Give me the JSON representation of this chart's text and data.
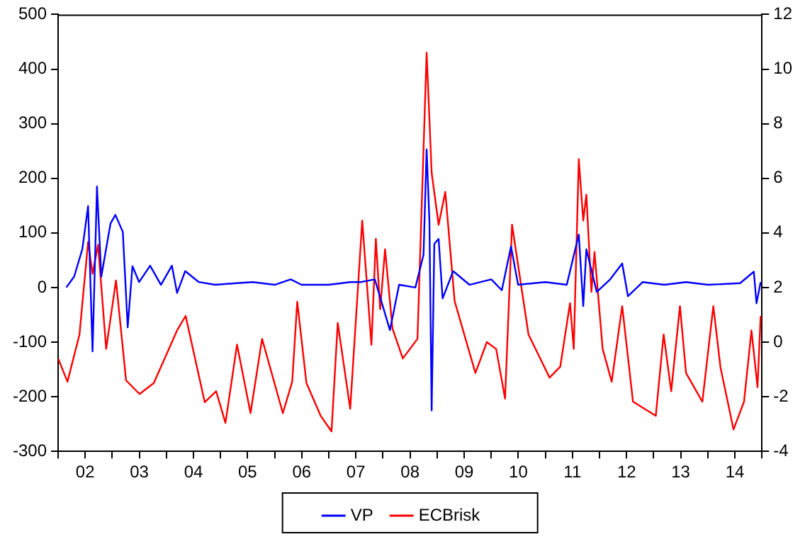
{
  "chart_data": {
    "type": "line",
    "xlim": [
      "2002-01-01",
      "2015-01-01"
    ],
    "xticks": [
      {
        "value": "2002-01-01",
        "label": null
      },
      {
        "value": "2002-07-02",
        "label": "02"
      },
      {
        "value": "2003-01-01",
        "label": null
      },
      {
        "value": "2003-07-02",
        "label": "03"
      },
      {
        "value": "2004-01-01",
        "label": null
      },
      {
        "value": "2004-07-02",
        "label": "04"
      },
      {
        "value": "2005-01-01",
        "label": null
      },
      {
        "value": "2005-07-02",
        "label": "05"
      },
      {
        "value": "2006-01-01",
        "label": null
      },
      {
        "value": "2006-07-02",
        "label": "06"
      },
      {
        "value": "2007-01-01",
        "label": null
      },
      {
        "value": "2007-07-02",
        "label": "07"
      },
      {
        "value": "2008-01-01",
        "label": null
      },
      {
        "value": "2008-07-02",
        "label": "08"
      },
      {
        "value": "2009-01-01",
        "label": null
      },
      {
        "value": "2009-07-02",
        "label": "09"
      },
      {
        "value": "2010-01-01",
        "label": null
      },
      {
        "value": "2010-07-02",
        "label": "10"
      },
      {
        "value": "2011-01-01",
        "label": null
      },
      {
        "value": "2011-07-02",
        "label": "11"
      },
      {
        "value": "2012-01-01",
        "label": null
      },
      {
        "value": "2012-07-02",
        "label": "12"
      },
      {
        "value": "2013-01-01",
        "label": null
      },
      {
        "value": "2013-07-02",
        "label": "13"
      },
      {
        "value": "2014-01-01",
        "label": null
      },
      {
        "value": "2014-07-02",
        "label": "14"
      },
      {
        "value": "2015-01-01",
        "label": null
      }
    ],
    "ylim": [
      -300,
      500
    ],
    "yticks": [
      -300,
      -200,
      -100,
      0,
      100,
      200,
      300,
      400,
      500
    ],
    "y2lim": [
      -4,
      12
    ],
    "y2ticks": [
      -4,
      -2,
      0,
      2,
      4,
      6,
      8,
      10,
      12
    ],
    "legend": "bottom",
    "marker": "none",
    "line_style": "solid",
    "series": [
      {
        "name": "VP",
        "color": "#0000ff",
        "x": [
          "2002-02-25",
          "2002-04-19",
          "2002-06-13",
          "2002-07-22",
          "2002-08-21",
          "2002-09-20",
          "2002-10-19",
          "2002-12-20",
          "2003-01-22",
          "2003-03-13",
          "2003-04-15",
          "2003-05-17",
          "2003-07-01",
          "2003-09-13",
          "2003-11-25",
          "2004-02-07",
          "2004-03-13",
          "2004-05-07",
          "2004-08-07",
          "2004-11-25",
          "2005-04-19",
          "2005-08-07",
          "2006-01-01",
          "2006-04-19",
          "2006-07-01",
          "2007-01-01",
          "2007-05-25",
          "2007-08-07",
          "2007-11-07",
          "2008-02-17",
          "2008-04-19",
          "2008-08-07",
          "2008-10-01",
          "2008-10-22",
          "2008-11-10",
          "2008-11-25",
          "2008-12-13",
          "2009-01-11",
          "2009-02-07",
          "2009-04-19",
          "2009-08-07",
          "2010-01-01",
          "2010-03-13",
          "2010-05-14",
          "2010-07-01",
          "2011-01-01",
          "2011-05-25",
          "2011-08-14",
          "2011-09-13",
          "2011-10-04",
          "2011-12-13",
          "2012-03-13",
          "2012-06-02",
          "2012-07-11",
          "2012-10-19",
          "2013-03-13",
          "2013-08-07",
          "2014-01-01",
          "2014-08-07",
          "2014-11-07",
          "2014-11-25",
          "2014-12-23"
        ],
        "values": [
          0,
          20,
          70,
          149,
          -117,
          185,
          20,
          117,
          133,
          102,
          -73,
          39,
          10,
          40,
          5,
          40,
          -10,
          30,
          10,
          5,
          8,
          10,
          5,
          15,
          5,
          5,
          10,
          10,
          15,
          -78,
          5,
          0,
          60,
          253,
          120,
          -225,
          80,
          89,
          -20,
          30,
          5,
          15,
          -5,
          75,
          5,
          10,
          5,
          97,
          -34,
          70,
          -8,
          15,
          44,
          -16,
          10,
          5,
          10,
          5,
          8,
          29,
          -29,
          10
        ]
      },
      {
        "name": "ECBrisk",
        "color": "#ff0000",
        "axis": "y2",
        "x": [
          "2002-01-01",
          "2002-03-05",
          "2002-05-25",
          "2002-07-22",
          "2002-08-21",
          "2002-09-27",
          "2002-11-21",
          "2003-01-26",
          "2003-04-04",
          "2003-07-04",
          "2003-10-08",
          "2004-03-13",
          "2004-05-10",
          "2004-09-16",
          "2004-12-02",
          "2005-02-03",
          "2005-04-22",
          "2005-07-22",
          "2005-10-08",
          "2006-02-25",
          "2006-04-29",
          "2006-06-02",
          "2006-08-03",
          "2006-11-07",
          "2007-01-19",
          "2007-03-02",
          "2007-05-25",
          "2007-08-14",
          "2007-10-15",
          "2007-11-14",
          "2007-12-13",
          "2008-01-15",
          "2008-03-05",
          "2008-05-14",
          "2008-08-21",
          "2008-10-22",
          "2008-11-25",
          "2009-01-11",
          "2009-02-25",
          "2009-04-29",
          "2009-09-16",
          "2009-12-02",
          "2010-02-03",
          "2010-04-04",
          "2010-05-21",
          "2010-09-09",
          "2011-01-29",
          "2011-04-11",
          "2011-06-16",
          "2011-07-11",
          "2011-08-14",
          "2011-09-13",
          "2011-10-04",
          "2011-11-07",
          "2011-11-28",
          "2012-01-22",
          "2012-03-23",
          "2012-06-02",
          "2012-08-14",
          "2013-01-15",
          "2013-03-09",
          "2013-04-29",
          "2013-06-27",
          "2013-08-07",
          "2013-11-25",
          "2014-02-07",
          "2014-03-27",
          "2014-06-23",
          "2014-09-02",
          "2014-10-22",
          "2014-12-02",
          "2014-12-23"
        ],
        "values": [
          -0.6,
          -1.45,
          0.28,
          3.67,
          2.5,
          3.57,
          -0.25,
          2.26,
          -1.4,
          -1.9,
          -1.5,
          0.43,
          0.96,
          -2.2,
          -1.8,
          -2.96,
          -0.09,
          -2.6,
          0.12,
          -2.6,
          -1.45,
          1.48,
          -1.5,
          -2.7,
          -3.27,
          0.7,
          -2.44,
          4.45,
          -0.1,
          3.78,
          1.2,
          3.4,
          0.5,
          -0.6,
          0.12,
          10.6,
          6.2,
          4.3,
          5.5,
          1.5,
          -1.13,
          0.0,
          -0.25,
          -2.07,
          4.3,
          0.28,
          -1.3,
          -0.9,
          1.43,
          -0.25,
          6.7,
          4.45,
          5.4,
          1.84,
          3.3,
          -0.25,
          -1.45,
          1.32,
          -2.18,
          -2.7,
          0.28,
          -1.8,
          1.32,
          -1.13,
          -2.18,
          1.32,
          -0.92,
          -3.2,
          -2.18,
          0.43,
          -1.65,
          0.96
        ]
      }
    ]
  }
}
